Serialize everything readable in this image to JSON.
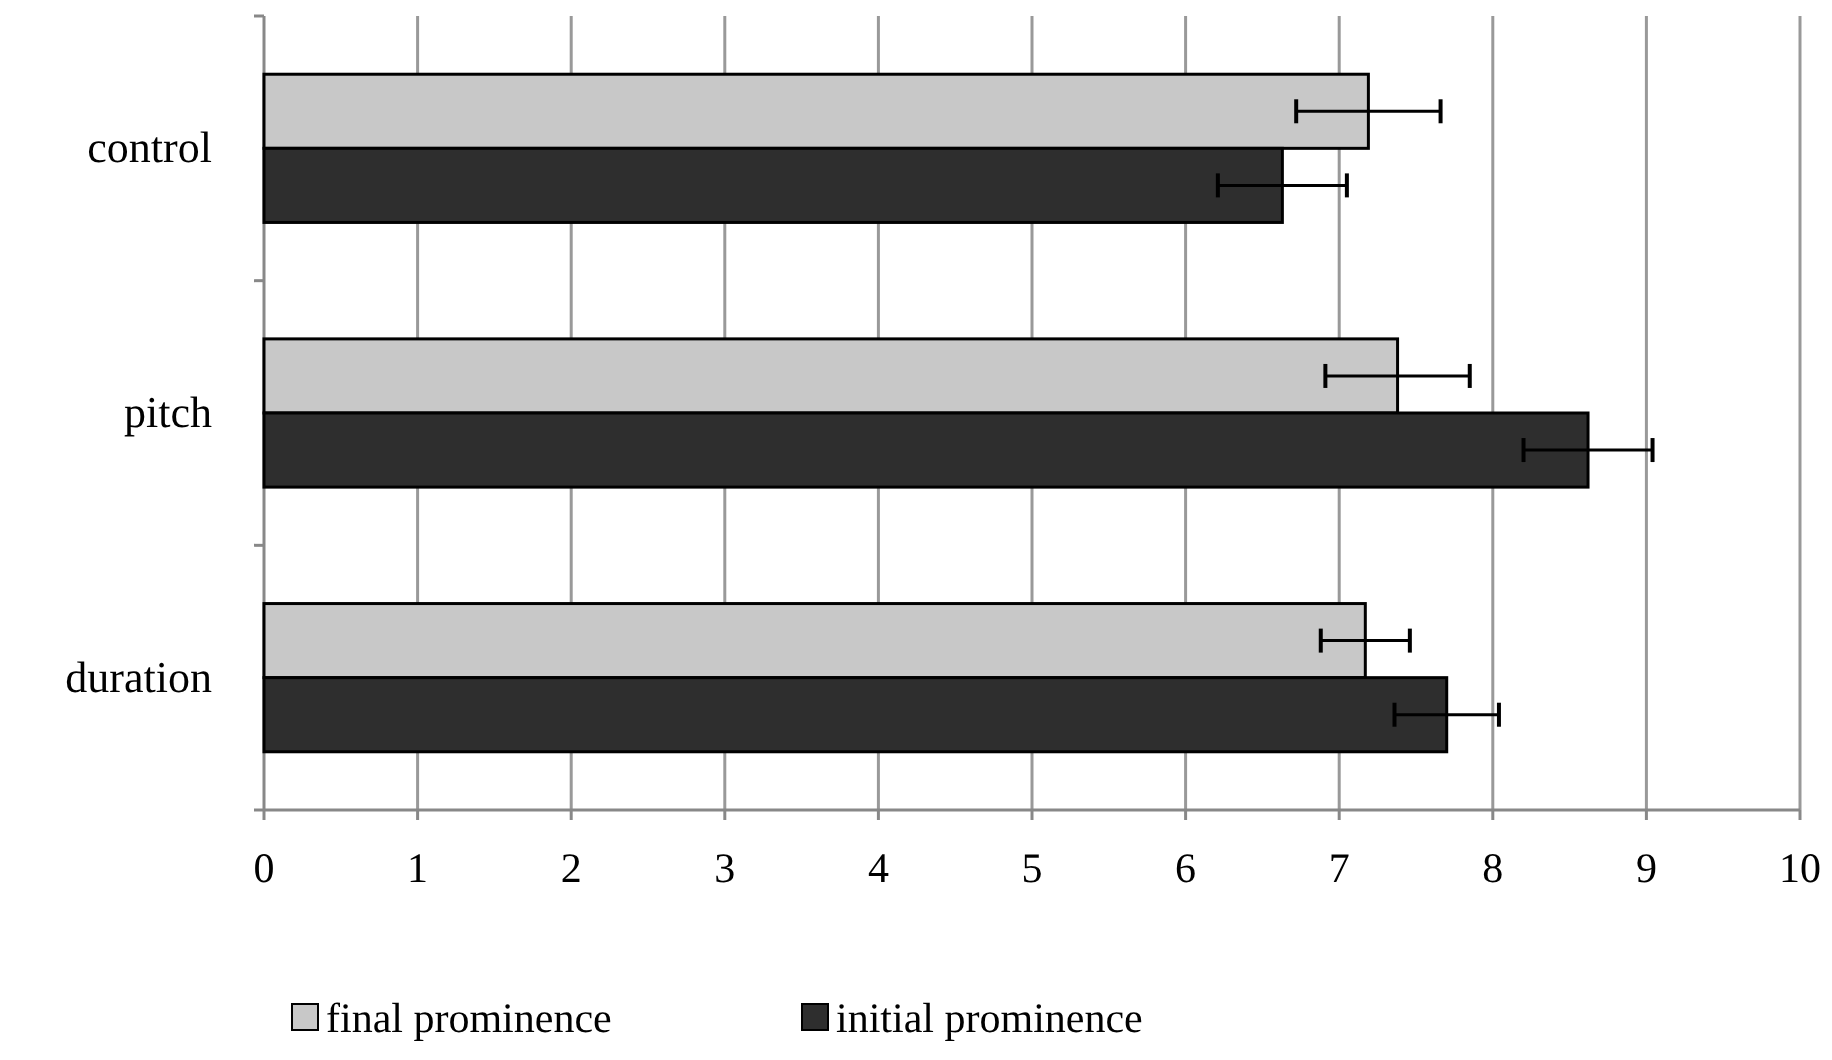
{
  "chart_data": {
    "type": "bar",
    "orientation": "horizontal",
    "categories": [
      "control",
      "pitch",
      "duration"
    ],
    "series": [
      {
        "name": "final prominence",
        "color": "#c8c8c8",
        "values": [
          7.19,
          7.38,
          7.17
        ],
        "errors": [
          0.47,
          0.47,
          0.29
        ]
      },
      {
        "name": "initial prominence",
        "color": "#2e2e2e",
        "values": [
          6.63,
          8.62,
          7.7
        ],
        "errors": [
          0.42,
          0.42,
          0.34
        ]
      }
    ],
    "xlim": [
      0,
      10
    ],
    "xticks": [
      0,
      1,
      2,
      3,
      4,
      5,
      6,
      7,
      8,
      9,
      10
    ],
    "grid": "x",
    "legend": "bottom"
  }
}
